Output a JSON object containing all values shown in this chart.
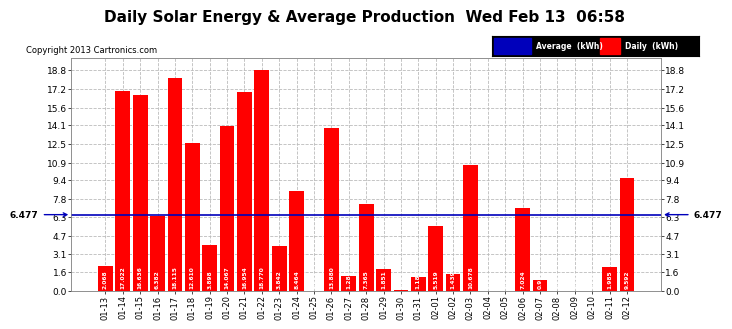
{
  "title": "Daily Solar Energy & Average Production  Wed Feb 13  06:58",
  "copyright": "Copyright 2013 Cartronics.com",
  "categories": [
    "01-13",
    "01-14",
    "01-15",
    "01-16",
    "01-17",
    "01-18",
    "01-19",
    "01-20",
    "01-21",
    "01-22",
    "01-23",
    "01-24",
    "01-25",
    "01-26",
    "01-27",
    "01-28",
    "01-29",
    "01-30",
    "01-31",
    "02-01",
    "02-02",
    "02-03",
    "02-04",
    "02-05",
    "02-06",
    "02-07",
    "02-08",
    "02-09",
    "02-10",
    "02-11",
    "02-12"
  ],
  "values": [
    2.068,
    17.022,
    16.636,
    6.382,
    18.115,
    12.61,
    3.898,
    14.067,
    16.954,
    18.77,
    3.842,
    8.464,
    0.0,
    13.88,
    1.284,
    7.365,
    1.851,
    0.056,
    1.186,
    5.519,
    1.439,
    10.678,
    0.0,
    0.0,
    7.024,
    0.911,
    0.0,
    0.0,
    0.013,
    1.985,
    9.592
  ],
  "average": 6.477,
  "bar_color": "#ff0000",
  "average_color": "#0000bb",
  "background_color": "#ffffff",
  "plot_bg_color": "#ffffff",
  "grid_color": "#bbbbbb",
  "title_fontsize": 11,
  "copyright_fontsize": 6,
  "yticks": [
    0.0,
    1.6,
    3.1,
    4.7,
    6.3,
    7.8,
    9.4,
    10.9,
    12.5,
    14.1,
    15.6,
    17.2,
    18.8
  ],
  "ymax": 19.8,
  "avg_label": "6.477",
  "legend_avg_label": "Average  (kWh)",
  "legend_daily_label": "Daily  (kWh)",
  "value_fontsize": 4.2,
  "xtick_fontsize": 6.0,
  "ytick_fontsize": 6.5
}
